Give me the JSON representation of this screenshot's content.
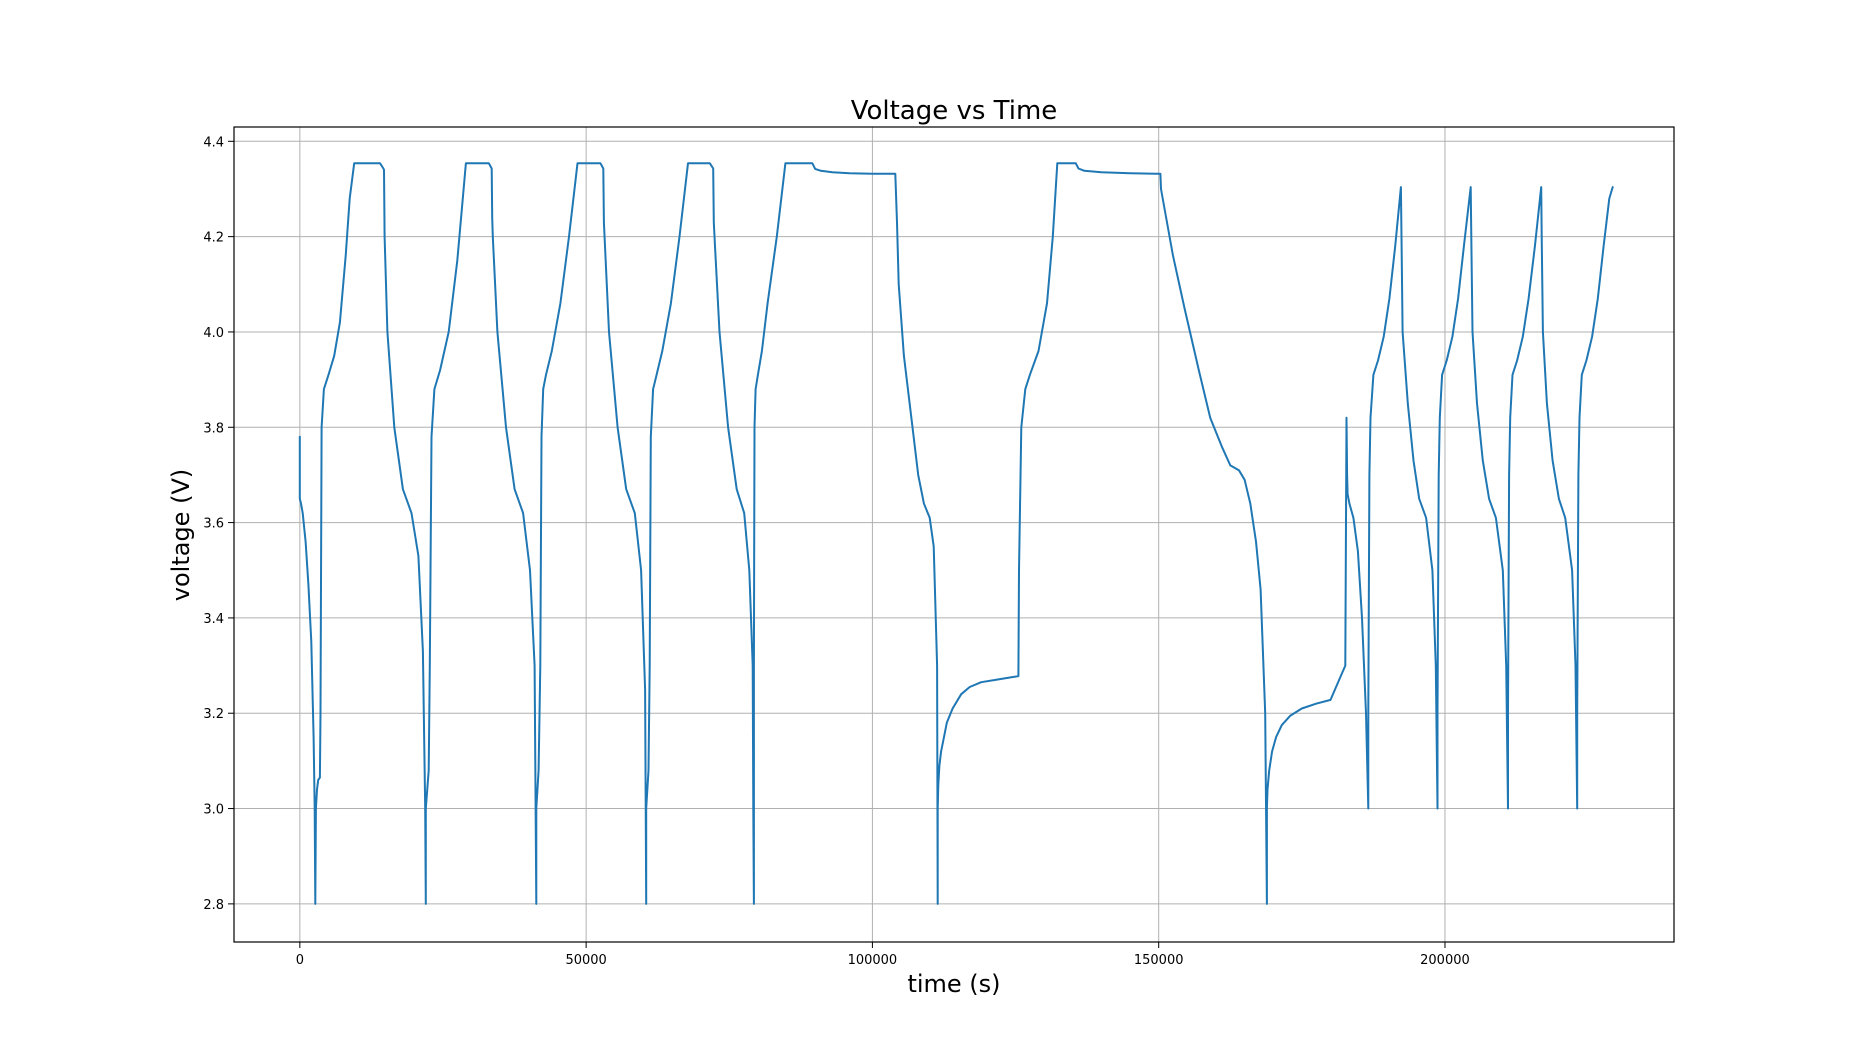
{
  "chart_data": {
    "type": "line",
    "title": "Voltage vs Time",
    "xlabel": "time (s)",
    "ylabel": "voltage (V)",
    "xlim": [
      -11500,
      240000
    ],
    "ylim": [
      2.72,
      4.43
    ],
    "x_ticks": [
      0,
      50000,
      100000,
      150000,
      200000
    ],
    "x_tick_labels": [
      "0",
      "50000",
      "100000",
      "150000",
      "200000"
    ],
    "y_ticks": [
      2.8,
      3.0,
      3.2,
      3.4,
      3.6,
      3.8,
      4.0,
      4.2,
      4.4
    ],
    "y_tick_labels": [
      "2.8",
      "3.0",
      "3.2",
      "3.4",
      "3.6",
      "3.8",
      "4.0",
      "4.2",
      "4.4"
    ],
    "grid": true,
    "legend": "none",
    "colors": {
      "series": "#1f77b4",
      "grid": "#b0b0b0",
      "axes": "#000000"
    },
    "series": [
      {
        "x": [
          0,
          0,
          200,
          500,
          1000,
          1500,
          2000,
          2400,
          2600,
          2700,
          2800,
          3000,
          3200,
          3500,
          3600,
          3800,
          4200,
          5000,
          6000,
          7000,
          8000,
          8700,
          9500,
          10100,
          14000,
          14600,
          14700,
          14800,
          15300,
          16500,
          18000,
          19500,
          20700,
          21500,
          21900,
          22000,
          22000,
          22500,
          22700,
          23000,
          23500,
          24500,
          26000,
          27500,
          29000,
          29400,
          33000,
          33500,
          33600,
          33700,
          34500,
          36000,
          37500,
          39000,
          40200,
          41000,
          41300,
          41300,
          41700,
          42000,
          42200,
          42500,
          43000,
          44000,
          45500,
          47000,
          48500,
          48700,
          52500,
          53000,
          53100,
          53300,
          54000,
          55500,
          57000,
          58500,
          59600,
          60300,
          60500,
          60500,
          60900,
          61100,
          61300,
          61700,
          62300,
          63300,
          64800,
          66300,
          67800,
          68000,
          71600,
          72200,
          72300,
          72500,
          73300,
          74800,
          76300,
          77600,
          78500,
          79100,
          79200,
          79300,
          79300,
          79400,
          79600,
          80000,
          80700,
          81700,
          83300,
          84800,
          86400,
          86600,
          89500,
          90000,
          91000,
          93000,
          96000,
          100000,
          103500,
          104000,
          104300,
          104600,
          105500,
          107000,
          108000,
          109000,
          110000,
          110700,
          111300,
          111400,
          111400,
          111500,
          111700,
          112000,
          112500,
          113000,
          114000,
          115500,
          117000,
          119000,
          121500,
          124000,
          125500,
          125600,
          126000,
          126700,
          127500,
          129000,
          130500,
          131500,
          132300,
          135500,
          136000,
          137000,
          140000,
          145000,
          149500,
          150300,
          150400,
          151000,
          152500,
          154500,
          157000,
          159000,
          161000,
          162500,
          164000,
          165000,
          166000,
          167000,
          167800,
          168600,
          168900,
          168900,
          169000,
          169300,
          169800,
          170500,
          171500,
          173000,
          175000,
          177500,
          180000,
          182600,
          182800,
          182900,
          183000,
          183300,
          184000,
          184800,
          185500,
          186200,
          186600,
          186600,
          186800,
          187000,
          187500,
          188300,
          189300,
          190300,
          191300,
          192300,
          192400,
          192600,
          193500,
          194500,
          195500,
          196700,
          197800,
          198400,
          198700,
          198700,
          198900,
          199100,
          199500,
          200300,
          201300,
          202300,
          203300,
          204500,
          204600,
          204800,
          205600,
          206600,
          207700,
          208900,
          210100,
          210700,
          211000,
          211000,
          211200,
          211400,
          211800,
          212600,
          213600,
          214600,
          215700,
          216800,
          216900,
          217100,
          217800,
          218800,
          219900,
          221000,
          222200,
          222800,
          223100,
          223100,
          223300,
          223500,
          223900,
          224700,
          225700,
          226700,
          227700,
          228700,
          229300
        ],
        "y": [
          3.78,
          3.65,
          3.64,
          3.62,
          3.56,
          3.47,
          3.35,
          3.15,
          3.0,
          2.8,
          3.0,
          3.04,
          3.06,
          3.065,
          3.2,
          3.8,
          3.88,
          3.91,
          3.95,
          4.02,
          4.16,
          4.28,
          4.354,
          4.354,
          4.354,
          4.343,
          4.34,
          4.2,
          4.0,
          3.8,
          3.67,
          3.62,
          3.53,
          3.33,
          3.0,
          2.8,
          3.0,
          3.08,
          3.3,
          3.78,
          3.88,
          3.92,
          4.0,
          4.15,
          4.354,
          4.354,
          4.354,
          4.343,
          4.24,
          4.2,
          4.0,
          3.8,
          3.67,
          3.62,
          3.5,
          3.3,
          2.8,
          3.0,
          3.08,
          3.3,
          3.78,
          3.88,
          3.91,
          3.96,
          4.06,
          4.2,
          4.354,
          4.354,
          4.354,
          4.343,
          4.23,
          4.18,
          4.0,
          3.8,
          3.67,
          3.62,
          3.5,
          3.25,
          2.8,
          3.0,
          3.08,
          3.3,
          3.78,
          3.88,
          3.91,
          3.96,
          4.06,
          4.2,
          4.354,
          4.354,
          4.354,
          4.343,
          4.23,
          4.18,
          4.0,
          3.8,
          3.67,
          3.62,
          3.5,
          3.3,
          3.0,
          2.8,
          3.3,
          3.8,
          3.88,
          3.91,
          3.96,
          4.06,
          4.2,
          4.354,
          4.354,
          4.354,
          4.354,
          4.342,
          4.338,
          4.335,
          4.333,
          4.332,
          4.332,
          4.332,
          4.23,
          4.1,
          3.95,
          3.8,
          3.7,
          3.64,
          3.61,
          3.55,
          3.3,
          2.8,
          3.0,
          3.05,
          3.09,
          3.12,
          3.15,
          3.18,
          3.21,
          3.24,
          3.255,
          3.265,
          3.27,
          3.275,
          3.278,
          3.5,
          3.8,
          3.88,
          3.91,
          3.96,
          4.06,
          4.2,
          4.354,
          4.354,
          4.343,
          4.338,
          4.335,
          4.333,
          4.332,
          4.332,
          4.3,
          4.26,
          4.16,
          4.05,
          3.92,
          3.82,
          3.76,
          3.72,
          3.71,
          3.69,
          3.64,
          3.56,
          3.46,
          3.2,
          2.8,
          3.0,
          3.04,
          3.08,
          3.12,
          3.15,
          3.175,
          3.195,
          3.21,
          3.22,
          3.228,
          3.3,
          3.82,
          3.7,
          3.66,
          3.64,
          3.61,
          3.54,
          3.4,
          3.2,
          3.0,
          3.2,
          3.7,
          3.82,
          3.91,
          3.94,
          3.99,
          4.07,
          4.18,
          4.304,
          4.2,
          4.0,
          3.85,
          3.73,
          3.65,
          3.61,
          3.5,
          3.3,
          3.0,
          3.2,
          3.7,
          3.82,
          3.91,
          3.94,
          3.99,
          4.07,
          4.18,
          4.304,
          4.2,
          4.0,
          3.85,
          3.73,
          3.65,
          3.61,
          3.5,
          3.3,
          3.0,
          3.2,
          3.7,
          3.82,
          3.91,
          3.94,
          3.99,
          4.07,
          4.18,
          4.304,
          4.2,
          4.0,
          3.85,
          3.73,
          3.65,
          3.61,
          3.5,
          3.3,
          3.0,
          3.2,
          3.7,
          3.82,
          3.91,
          3.94,
          3.99,
          4.07,
          4.18,
          4.28,
          4.304
        ]
      }
    ]
  }
}
